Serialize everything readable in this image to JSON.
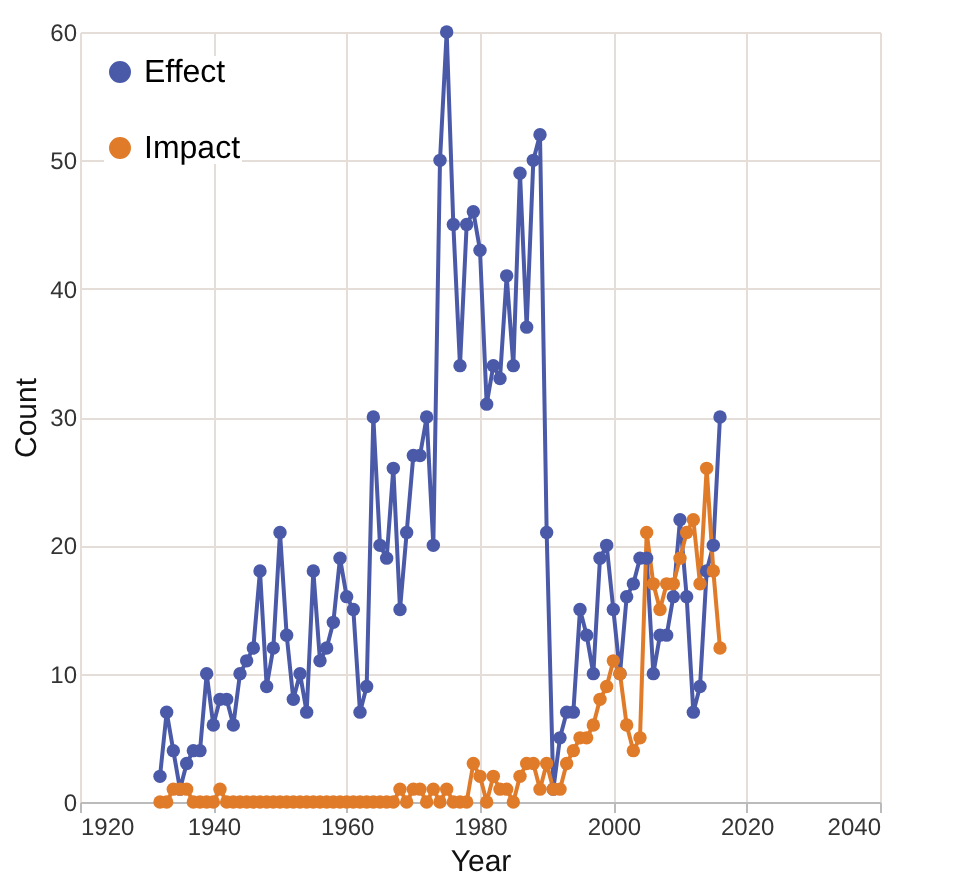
{
  "chart_data": {
    "type": "line",
    "xlabel": "Year",
    "ylabel": "Count",
    "x": [
      1932,
      1933,
      1934,
      1935,
      1936,
      1937,
      1938,
      1939,
      1940,
      1941,
      1942,
      1943,
      1944,
      1945,
      1946,
      1947,
      1948,
      1949,
      1950,
      1951,
      1952,
      1953,
      1954,
      1955,
      1956,
      1957,
      1958,
      1959,
      1960,
      1961,
      1962,
      1963,
      1964,
      1965,
      1966,
      1967,
      1968,
      1969,
      1970,
      1971,
      1972,
      1973,
      1974,
      1975,
      1976,
      1977,
      1978,
      1979,
      1980,
      1981,
      1982,
      1983,
      1984,
      1985,
      1986,
      1987,
      1988,
      1989,
      1990,
      1991,
      1992,
      1993,
      1994,
      1995,
      1996,
      1997,
      1998,
      1999,
      2000,
      2001,
      2002,
      2003,
      2004,
      2005,
      2006,
      2007,
      2008,
      2009,
      2010,
      2011,
      2012,
      2013,
      2014,
      2015,
      2016
    ],
    "series": [
      {
        "name": "Effect",
        "color": "#4a5aa8",
        "values": [
          2,
          7,
          4,
          1,
          3,
          4,
          4,
          10,
          6,
          8,
          8,
          6,
          10,
          11,
          12,
          18,
          9,
          12,
          21,
          13,
          8,
          10,
          7,
          18,
          11,
          12,
          14,
          19,
          16,
          15,
          7,
          9,
          30,
          20,
          19,
          26,
          15,
          21,
          27,
          27,
          30,
          20,
          50,
          60,
          45,
          34,
          45,
          46,
          43,
          31,
          34,
          33,
          41,
          34,
          49,
          37,
          50,
          52,
          21,
          1,
          5,
          7,
          7,
          15,
          13,
          10,
          19,
          20,
          15,
          10,
          16,
          17,
          19,
          19,
          10,
          13,
          13,
          16,
          22,
          16,
          7,
          9,
          18,
          20,
          30
        ]
      },
      {
        "name": "Impact",
        "color": "#e07b2a",
        "values": [
          0,
          0,
          1,
          1,
          1,
          0,
          0,
          0,
          0,
          1,
          0,
          0,
          0,
          0,
          0,
          0,
          0,
          0,
          0,
          0,
          0,
          0,
          0,
          0,
          0,
          0,
          0,
          0,
          0,
          0,
          0,
          0,
          0,
          0,
          0,
          0,
          1,
          0,
          1,
          1,
          0,
          1,
          0,
          1,
          0,
          0,
          0,
          3,
          2,
          0,
          2,
          1,
          1,
          0,
          2,
          3,
          3,
          1,
          3,
          1,
          1,
          3,
          4,
          5,
          5,
          6,
          8,
          9,
          11,
          10,
          6,
          4,
          5,
          21,
          17,
          15,
          17,
          17,
          19,
          21,
          22,
          17,
          26,
          18,
          12
        ]
      }
    ],
    "xlim": [
      1920,
      2040
    ],
    "xticks": [
      1920,
      1940,
      1960,
      1980,
      2000,
      2020,
      2040
    ],
    "ylim": [
      0,
      60
    ],
    "yticks": [
      0,
      10,
      20,
      30,
      40,
      50,
      60
    ],
    "grid": true,
    "legend": "top left",
    "marker": "circle",
    "line_style": "solid"
  }
}
